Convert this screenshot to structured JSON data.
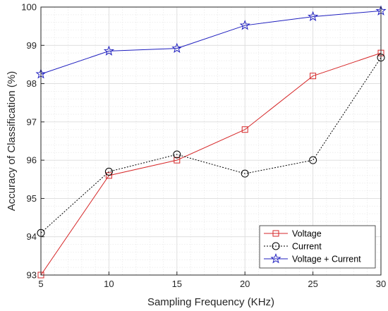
{
  "chart_data": {
    "type": "line",
    "title": "",
    "xlabel": "Sampling Frequency (KHz)",
    "ylabel": "Accuracy of Classification (%)",
    "x": [
      5,
      10,
      15,
      20,
      25,
      30
    ],
    "xlim": [
      5,
      30
    ],
    "ylim": [
      93,
      100
    ],
    "xticks": [
      "5",
      "10",
      "15",
      "20",
      "25",
      "30"
    ],
    "yticks": [
      "93",
      "94",
      "95",
      "96",
      "97",
      "98",
      "99",
      "100"
    ],
    "grid": true,
    "minor_grid": true,
    "legend_position": "bottom-right",
    "series": [
      {
        "name": "Voltage",
        "values": [
          93.0,
          95.6,
          96.0,
          96.8,
          98.2,
          98.8
        ],
        "color": "#d62728",
        "line_style": "solid",
        "marker": "square"
      },
      {
        "name": "Current",
        "values": [
          94.1,
          95.7,
          96.15,
          95.65,
          96.0,
          98.68
        ],
        "color": "#000000",
        "line_style": "dotted",
        "marker": "circle"
      },
      {
        "name": "Voltage + Current",
        "values": [
          98.25,
          98.85,
          98.92,
          99.52,
          99.75,
          99.9
        ],
        "color": "#1f1fbf",
        "line_style": "solid",
        "marker": "star"
      }
    ]
  }
}
